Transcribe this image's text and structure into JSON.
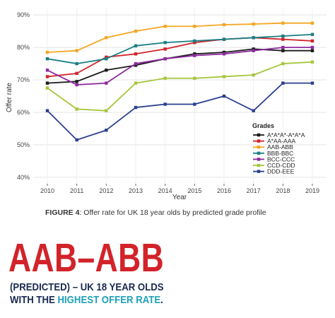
{
  "chart_data": {
    "type": "line",
    "title": "",
    "xlabel": "Year",
    "ylabel": "Offer rate",
    "x": [
      2010,
      2011,
      2012,
      2013,
      2014,
      2015,
      2016,
      2017,
      2018,
      2019
    ],
    "ylim": [
      38,
      92
    ],
    "yticks": [
      40,
      50,
      60,
      70,
      80,
      90
    ],
    "ytick_labels": [
      "40%",
      "50%",
      "60%",
      "70%",
      "80%",
      "90%"
    ],
    "grid": true,
    "legend": {
      "title": "Grades",
      "placement": "bottom-right"
    },
    "series": [
      {
        "name": "A*A*A*-A*A*A",
        "color": "#1a1a1a",
        "values": [
          69,
          69.5,
          73,
          74.5,
          76.5,
          78,
          78.5,
          79.5,
          79,
          79
        ]
      },
      {
        "name": "A*AA-AAA",
        "color": "#d2232a",
        "values": [
          71,
          72,
          77,
          78,
          79.5,
          81.5,
          82.5,
          83,
          82.5,
          82
        ]
      },
      {
        "name": "AAB-ABB",
        "color": "#f5a623",
        "values": [
          78.5,
          79,
          83,
          85,
          86.5,
          86.5,
          87,
          87.2,
          87.5,
          87.5
        ]
      },
      {
        "name": "BBB-BBC",
        "color": "#1a7f84",
        "values": [
          76.5,
          75,
          76.5,
          80.5,
          81.5,
          82,
          82.5,
          83,
          83.5,
          84
        ]
      },
      {
        "name": "BCC-CCC",
        "color": "#8e2a9e",
        "values": [
          73,
          68.5,
          69,
          75,
          76.5,
          77.5,
          78,
          79,
          80,
          80
        ]
      },
      {
        "name": "CCD-CDD",
        "color": "#a5c63b",
        "values": [
          67.5,
          61,
          60.5,
          69,
          70.5,
          70.5,
          71,
          71.5,
          75,
          75.5
        ]
      },
      {
        "name": "DDD-EEE",
        "color": "#2a3f8f",
        "values": [
          60.5,
          51.5,
          54.5,
          61.5,
          62.5,
          62.5,
          65,
          60.5,
          69,
          69
        ]
      }
    ]
  },
  "caption": {
    "figure_label": "FIGURE 4",
    "text": ": Offer rate for UK 18 year olds by predicted grade profile"
  },
  "headline": {
    "big": "AAB–ABB",
    "line1": "(PREDICTED) – UK 18 YEAR OLDS",
    "line2_prefix": "WITH THE ",
    "line2_highlight": "HIGHEST OFFER RATE",
    "line2_suffix": "."
  }
}
